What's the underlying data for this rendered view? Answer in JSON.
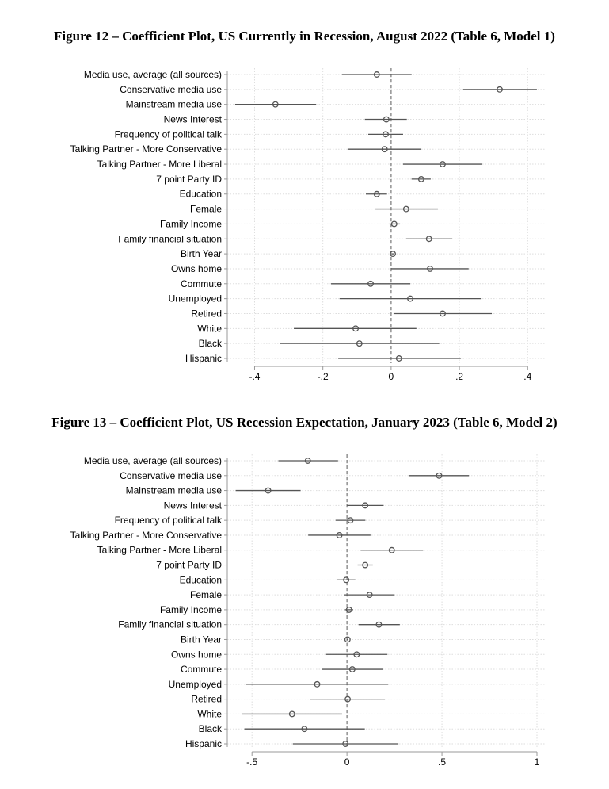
{
  "chart_data": [
    {
      "type": "scatter",
      "subtype": "coefficient-plot",
      "title": "Figure 12 – Coefficient Plot, US Currently in Recession, August 2022 (Table 6, Model 1)",
      "xlabel": "",
      "ylabel": "",
      "xlim": [
        -0.48,
        0.455
      ],
      "xticks": [
        -0.4,
        -0.2,
        0,
        0.2,
        0.4
      ],
      "xtick_labels": [
        "-.4",
        "-.2",
        "0",
        ".2",
        ".4"
      ],
      "grid": true,
      "reference_line": 0,
      "categories": [
        "Media use, average (all sources)",
        "Conservative media use",
        "Mainstream media use",
        "News Interest",
        "Frequency of political talk",
        "Talking Partner - More Conservative",
        "Talking Partner - More Liberal",
        "7 point Party ID",
        "Education",
        "Female",
        "Family Income",
        "Family financial situation",
        "Birth Year",
        "Owns home",
        "Commute",
        "Unemployed",
        "Retired",
        "White",
        "Black",
        "Hispanic"
      ],
      "estimate": [
        -0.042,
        0.318,
        -0.339,
        -0.014,
        -0.016,
        -0.019,
        0.151,
        0.088,
        -0.042,
        0.044,
        0.009,
        0.111,
        0.005,
        0.114,
        -0.06,
        0.056,
        0.151,
        -0.104,
        -0.093,
        0.023
      ],
      "ci_low": [
        -0.144,
        0.211,
        -0.457,
        -0.077,
        -0.067,
        -0.125,
        0.035,
        0.06,
        -0.074,
        -0.046,
        -0.005,
        0.044,
        0.002,
        0.0,
        -0.176,
        -0.151,
        0.007,
        -0.285,
        -0.325,
        -0.155
      ],
      "ci_high": [
        0.06,
        0.427,
        -0.22,
        0.046,
        0.035,
        0.088,
        0.267,
        0.116,
        -0.012,
        0.137,
        0.026,
        0.179,
        0.008,
        0.227,
        0.056,
        0.265,
        0.295,
        0.074,
        0.141,
        0.204
      ]
    },
    {
      "type": "scatter",
      "subtype": "coefficient-plot",
      "title": "Figure 13 – Coefficient Plot, US Recession Expectation, January 2023 (Table 6, Model 2)",
      "xlabel": "",
      "ylabel": "",
      "xlim": [
        -0.63,
        1.05
      ],
      "xticks": [
        -0.5,
        0,
        0.5,
        1
      ],
      "xtick_labels": [
        "-.5",
        "0",
        ".5",
        "1"
      ],
      "grid": true,
      "reference_line": 0,
      "categories": [
        "Media use, average (all sources)",
        "Conservative media use",
        "Mainstream media use",
        "News Interest",
        "Frequency of political talk",
        "Talking Partner - More Conservative",
        "Talking Partner - More Liberal",
        "7 point Party ID",
        "Education",
        "Female",
        "Family Income",
        "Family financial situation",
        "Birth Year",
        "Owns home",
        "Commute",
        "Unemployed",
        "Retired",
        "White",
        "Black",
        "Hispanic"
      ],
      "estimate": [
        -0.206,
        0.485,
        -0.415,
        0.096,
        0.018,
        -0.04,
        0.236,
        0.096,
        -0.004,
        0.119,
        0.011,
        0.168,
        0.003,
        0.051,
        0.028,
        -0.157,
        0.004,
        -0.289,
        -0.224,
        -0.008
      ],
      "ci_low": [
        -0.361,
        0.328,
        -0.586,
        0.0,
        -0.06,
        -0.204,
        0.072,
        0.056,
        -0.053,
        -0.013,
        -0.011,
        0.061,
        0.0,
        -0.11,
        -0.133,
        -0.531,
        -0.193,
        -0.551,
        -0.54,
        -0.285
      ],
      "ci_high": [
        -0.047,
        0.642,
        -0.244,
        0.193,
        0.097,
        0.124,
        0.401,
        0.136,
        0.044,
        0.251,
        0.033,
        0.278,
        0.006,
        0.213,
        0.189,
        0.217,
        0.2,
        -0.026,
        0.094,
        0.271
      ]
    }
  ]
}
